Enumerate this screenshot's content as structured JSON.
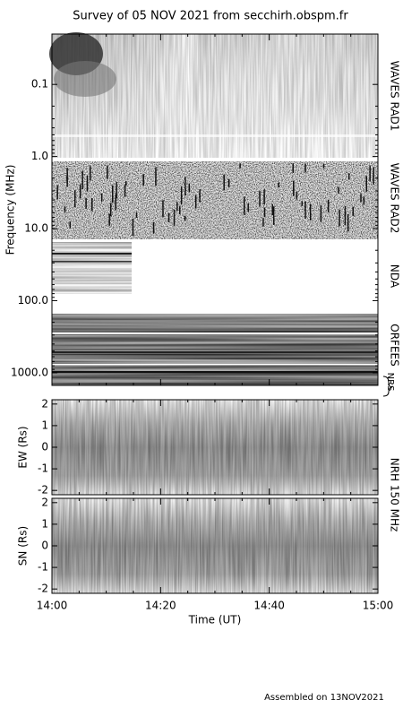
{
  "title": "Survey of 05 NOV 2021 from secchirh.obspm.fr",
  "footer": "Assembled on 13NOV2021",
  "side_label": "NRH 150 MHz",
  "chart_data": [
    {
      "type": "spectrogram",
      "ylabel": "Frequency (MHz)",
      "ylog": true,
      "yinvert": true,
      "ylim": [
        0.02,
        1500
      ],
      "yticks": [
        0.1,
        {
          "value": 1,
          "label": "1.0"
        },
        {
          "value": 10,
          "label": "10.0"
        },
        {
          "value": 100,
          "label": "100.0"
        },
        {
          "value": 1000,
          "label": "1000.0"
        }
      ],
      "xlim": [
        "14:00",
        "15:00"
      ],
      "bands": [
        "WAVES RAD1",
        "WAVES RAD2",
        "NDA",
        "ORFEES",
        "NRS"
      ]
    },
    {
      "type": "image",
      "ylabel": "EW (Rs)",
      "ylim": [
        -2.2,
        2.2
      ],
      "yticks": [
        -2,
        -1,
        0,
        1,
        2
      ],
      "xlim": [
        "14:00",
        "15:00"
      ]
    },
    {
      "type": "image",
      "ylabel": "SN (Rs)",
      "ylim": [
        -2.2,
        2.2
      ],
      "yticks": [
        -2,
        -1,
        0,
        1,
        2
      ],
      "xlim": [
        "14:00",
        "15:00"
      ],
      "xlabel": "Time (UT)",
      "xticks": [
        "14:00",
        "14:20",
        "14:40",
        "15:00"
      ]
    }
  ]
}
